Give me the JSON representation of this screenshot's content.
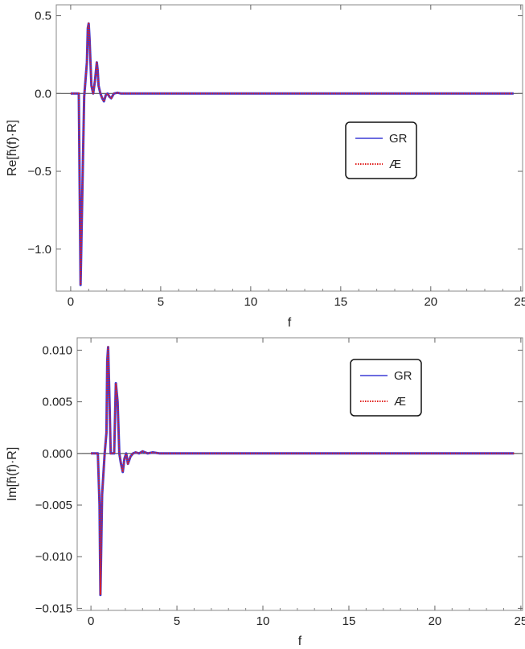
{
  "chart_data": [
    {
      "type": "line",
      "title": "",
      "xlabel": "f",
      "ylabel": "Re[h̃(f)·R]",
      "xlim": [
        -0.8,
        25.1
      ],
      "ylim": [
        -1.27,
        0.57
      ],
      "xticks": [
        0,
        5,
        10,
        15,
        20,
        25
      ],
      "xtick_labels": [
        "0",
        "5",
        "10",
        "15",
        "20",
        "25"
      ],
      "yticks": [
        -1.0,
        -0.5,
        0.0,
        0.5
      ],
      "ytick_labels": [
        "−1.0",
        "−0.5",
        "0.0",
        "0.5"
      ],
      "grid": false,
      "legend": {
        "position": "center-right",
        "entries": [
          "GR",
          "Æ"
        ]
      },
      "series": [
        {
          "name": "GR",
          "color": "#3b3bd6",
          "style": "solid",
          "x": [
            0.0,
            0.45,
            0.5,
            0.55,
            0.75,
            0.9,
            0.95,
            1.0,
            1.05,
            1.15,
            1.25,
            1.35,
            1.45,
            1.5,
            1.55,
            1.65,
            1.75,
            1.85,
            1.95,
            2.05,
            2.15,
            2.25,
            2.4,
            2.6,
            2.8,
            3.0,
            4.0,
            10.0,
            20.0,
            24.6
          ],
          "y": [
            0.0,
            0.0,
            -0.6,
            -1.23,
            -0.02,
            0.2,
            0.42,
            0.45,
            0.35,
            0.05,
            0.0,
            0.08,
            0.2,
            0.15,
            0.05,
            0.0,
            -0.03,
            -0.05,
            -0.01,
            0.0,
            -0.02,
            -0.03,
            0.0,
            0.005,
            0.0,
            0.0,
            0.0,
            0.0,
            0.0,
            0.0
          ]
        },
        {
          "name": "Æ",
          "color": "#e0201e",
          "style": "dotted",
          "x": [
            0.0,
            0.45,
            0.5,
            0.55,
            0.75,
            0.9,
            0.95,
            1.0,
            1.05,
            1.15,
            1.25,
            1.35,
            1.45,
            1.5,
            1.55,
            1.65,
            1.75,
            1.85,
            1.95,
            2.05,
            2.15,
            2.25,
            2.4,
            2.6,
            2.8,
            3.0,
            4.0,
            10.0,
            20.0,
            24.6
          ],
          "y": [
            0.0,
            0.0,
            -0.6,
            -1.23,
            -0.02,
            0.2,
            0.42,
            0.45,
            0.35,
            0.05,
            0.0,
            0.08,
            0.2,
            0.15,
            0.05,
            0.0,
            -0.03,
            -0.05,
            -0.01,
            0.0,
            -0.02,
            -0.03,
            0.0,
            0.005,
            0.0,
            0.0,
            0.0,
            0.0,
            0.0,
            0.0
          ]
        }
      ]
    },
    {
      "type": "line",
      "title": "",
      "xlabel": "f",
      "ylabel": "Im[h̃(f)·R]",
      "xlim": [
        -0.8,
        25.1
      ],
      "ylim": [
        -0.0152,
        0.0112
      ],
      "xticks": [
        0,
        5,
        10,
        15,
        20,
        25
      ],
      "xtick_labels": [
        "0",
        "5",
        "10",
        "15",
        "20",
        "25"
      ],
      "yticks": [
        -0.015,
        -0.01,
        -0.005,
        0.0,
        0.005,
        0.01
      ],
      "ytick_labels": [
        "−0.015",
        "−0.010",
        "−0.005",
        "0.000",
        "0.005",
        "0.010"
      ],
      "grid": false,
      "legend": {
        "position": "top-right",
        "entries": [
          "GR",
          "Æ"
        ]
      },
      "series": [
        {
          "name": "GR",
          "color": "#3b3bd6",
          "style": "solid",
          "x": [
            0.0,
            0.4,
            0.5,
            0.55,
            0.65,
            0.8,
            0.9,
            0.95,
            1.0,
            1.05,
            1.15,
            1.25,
            1.35,
            1.45,
            1.55,
            1.65,
            1.75,
            1.85,
            1.95,
            2.05,
            2.15,
            2.3,
            2.45,
            2.6,
            2.8,
            3.0,
            3.3,
            3.6,
            4.0,
            5.0,
            10.0,
            20.0,
            24.6
          ],
          "y": [
            0.0,
            0.0,
            -0.005,
            -0.0137,
            -0.004,
            0.0,
            0.002,
            0.009,
            0.0103,
            0.007,
            0.0,
            0.0,
            0.0,
            0.0068,
            0.005,
            0.0,
            -0.001,
            -0.0018,
            -0.0005,
            0.0,
            -0.001,
            -0.0003,
            0.0,
            0.0001,
            0.0,
            0.0002,
            0.0,
            0.0001,
            0.0,
            0.0,
            0.0,
            0.0,
            0.0
          ]
        },
        {
          "name": "Æ",
          "color": "#e0201e",
          "style": "dotted",
          "x": [
            0.0,
            0.4,
            0.5,
            0.55,
            0.65,
            0.8,
            0.9,
            0.95,
            1.0,
            1.05,
            1.15,
            1.25,
            1.35,
            1.45,
            1.55,
            1.65,
            1.75,
            1.85,
            1.95,
            2.05,
            2.15,
            2.3,
            2.45,
            2.6,
            2.8,
            3.0,
            3.3,
            3.6,
            4.0,
            5.0,
            10.0,
            20.0,
            24.6
          ],
          "y": [
            0.0,
            0.0,
            -0.005,
            -0.0137,
            -0.004,
            0.0,
            0.002,
            0.009,
            0.0103,
            0.007,
            0.0,
            0.0,
            0.0,
            0.0068,
            0.005,
            0.0,
            -0.001,
            -0.0018,
            -0.0005,
            0.0,
            -0.001,
            -0.0003,
            0.0,
            0.0001,
            0.0,
            0.0002,
            0.0,
            0.0001,
            0.0,
            0.0,
            0.0,
            0.0,
            0.0
          ]
        }
      ]
    }
  ]
}
